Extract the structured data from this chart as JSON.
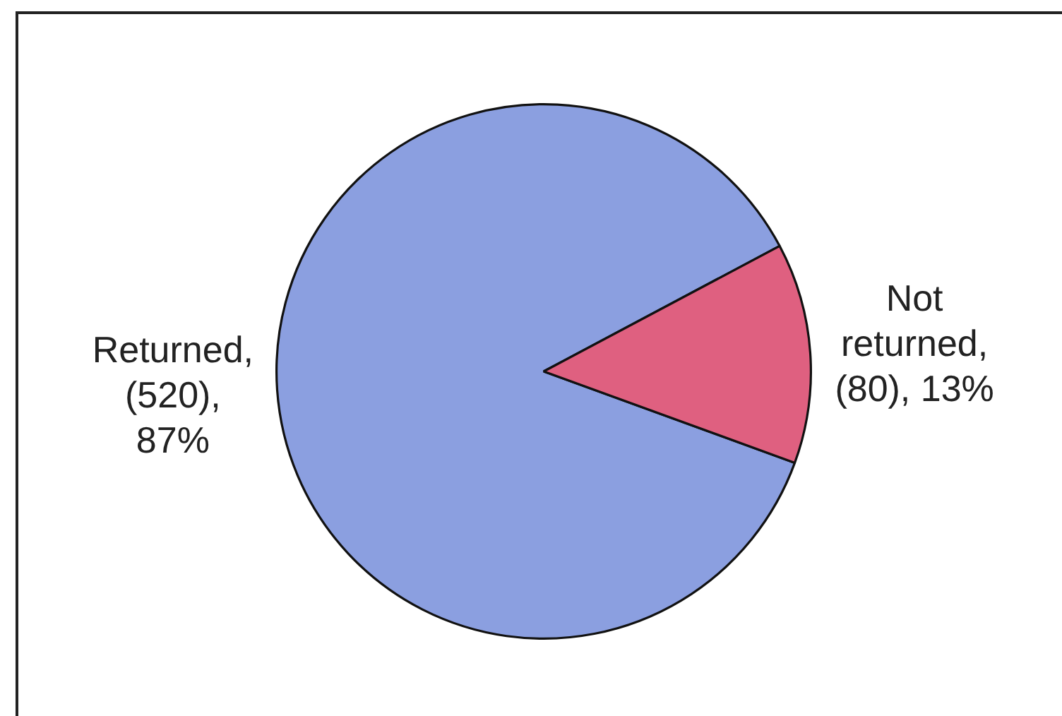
{
  "chart_data": {
    "type": "pie",
    "categories": [
      null,
      null
    ],
    "values": [
      520,
      80
    ],
    "colors": [
      "#8b9fe0",
      "#df6080"
    ],
    "value_labels": [
      "Returned, (520), 87%",
      "Not returned, (80), 13%"
    ]
  }
}
